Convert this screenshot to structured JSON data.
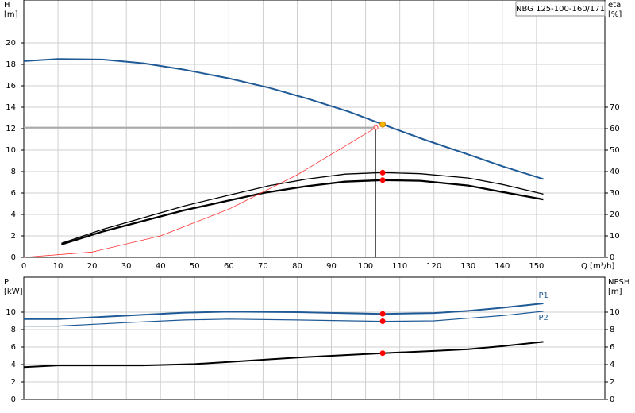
{
  "chart_data": [
    {
      "type": "line",
      "title": "NBG 125-100-160/171",
      "ylabel": [
        "H",
        "[m]"
      ],
      "y2label": [
        "eta",
        "[%]"
      ],
      "xlabel": "Q [m³/h]",
      "xlim": [
        0,
        170
      ],
      "xticks": [
        0,
        10,
        20,
        30,
        40,
        50,
        60,
        70,
        80,
        90,
        100,
        110,
        120,
        130,
        140,
        150
      ],
      "ylim": [
        0,
        24
      ],
      "yticks": [
        0,
        2,
        4,
        6,
        8,
        10,
        12,
        14,
        16,
        18,
        20
      ],
      "y2lim": [
        0,
        120
      ],
      "y2ticks": [
        0,
        10,
        20,
        30,
        40,
        50,
        60,
        70
      ],
      "grid": true,
      "series": [
        {
          "color": "#1f5a96",
          "width": 2,
          "axis": "y",
          "x": [
            0,
            10,
            23,
            35,
            47,
            60,
            72,
            83,
            95,
            105,
            117,
            130,
            140,
            152
          ],
          "values": [
            18.3,
            18.5,
            18.45,
            18.1,
            17.5,
            16.7,
            15.8,
            14.8,
            13.6,
            12.4,
            11.0,
            9.6,
            8.5,
            7.3
          ]
        },
        {
          "color": "#000000",
          "width": 1.3,
          "axis": "y2",
          "x": [
            11,
            23,
            35,
            47,
            60,
            72,
            83,
            94,
            105,
            116,
            130,
            140,
            152
          ],
          "values": [
            6.5,
            13,
            18.5,
            24,
            29,
            33.5,
            36.5,
            38.8,
            39.5,
            39,
            37,
            34,
            29.5
          ]
        },
        {
          "color": "#000000",
          "width": 2.3,
          "axis": "y2",
          "x": [
            11,
            23,
            35,
            47,
            60,
            70,
            82,
            94,
            105,
            116,
            130,
            140,
            152
          ],
          "values": [
            6,
            12,
            17,
            22,
            26.5,
            30,
            33,
            35.3,
            36,
            35.7,
            33.5,
            30.5,
            27
          ]
        },
        {
          "color": "#ff3030",
          "width": 0.8,
          "axis": "y",
          "x": [
            0,
            20,
            40,
            60,
            80,
            103
          ],
          "values": [
            0,
            0.5,
            2,
            4.5,
            7.7,
            12.1
          ]
        }
      ],
      "operating_point": {
        "x": 103,
        "y": 12.1
      },
      "markers": [
        {
          "x": 105,
          "y": 12.4,
          "axis": "y",
          "color": "#f5b800"
        },
        {
          "x": 105,
          "y": 39.5,
          "axis": "y2",
          "color": "#ff0000"
        },
        {
          "x": 105,
          "y": 36,
          "axis": "y2",
          "color": "#ff0000"
        }
      ]
    },
    {
      "type": "line",
      "ylabel": [
        "P",
        "[kW]"
      ],
      "y2label": [
        "NPSH",
        "[m]"
      ],
      "xlim": [
        0,
        170
      ],
      "xticks": [
        0,
        10,
        20,
        30,
        40,
        50,
        60,
        70,
        80,
        90,
        100,
        110,
        120,
        130,
        140,
        150
      ],
      "ylim": [
        0,
        14
      ],
      "yticks": [
        0,
        2,
        4,
        6,
        8,
        10
      ],
      "y2lim": [
        0,
        14
      ],
      "y2ticks": [
        0,
        2,
        4,
        6,
        8,
        10
      ],
      "grid": true,
      "series": [
        {
          "name": "P1",
          "color": "#1f5a96",
          "width": 2,
          "axis": "y",
          "x": [
            0,
            10,
            30,
            47,
            60,
            80,
            105,
            120,
            130,
            140,
            152
          ],
          "values": [
            9.2,
            9.2,
            9.6,
            9.95,
            10.05,
            10.0,
            9.8,
            9.9,
            10.15,
            10.5,
            11.0
          ]
        },
        {
          "name": "P2",
          "color": "#1f5a96",
          "width": 1.2,
          "axis": "y",
          "x": [
            0,
            10,
            30,
            47,
            60,
            80,
            105,
            120,
            130,
            140,
            152
          ],
          "values": [
            8.4,
            8.4,
            8.8,
            9.1,
            9.2,
            9.1,
            8.95,
            9.0,
            9.3,
            9.6,
            10.1
          ]
        },
        {
          "color": "#000000",
          "width": 2,
          "axis": "y2",
          "x": [
            0,
            10,
            35,
            50,
            60,
            80,
            105,
            120,
            130,
            140,
            152
          ],
          "values": [
            3.7,
            3.9,
            3.9,
            4.05,
            4.3,
            4.8,
            5.3,
            5.55,
            5.75,
            6.1,
            6.6
          ]
        }
      ],
      "markers": [
        {
          "x": 105,
          "y": 9.8,
          "axis": "y",
          "color": "#ff0000"
        },
        {
          "x": 105,
          "y": 8.95,
          "axis": "y",
          "color": "#ff0000"
        },
        {
          "x": 105,
          "y": 5.3,
          "axis": "y2",
          "color": "#ff0000"
        }
      ]
    }
  ]
}
